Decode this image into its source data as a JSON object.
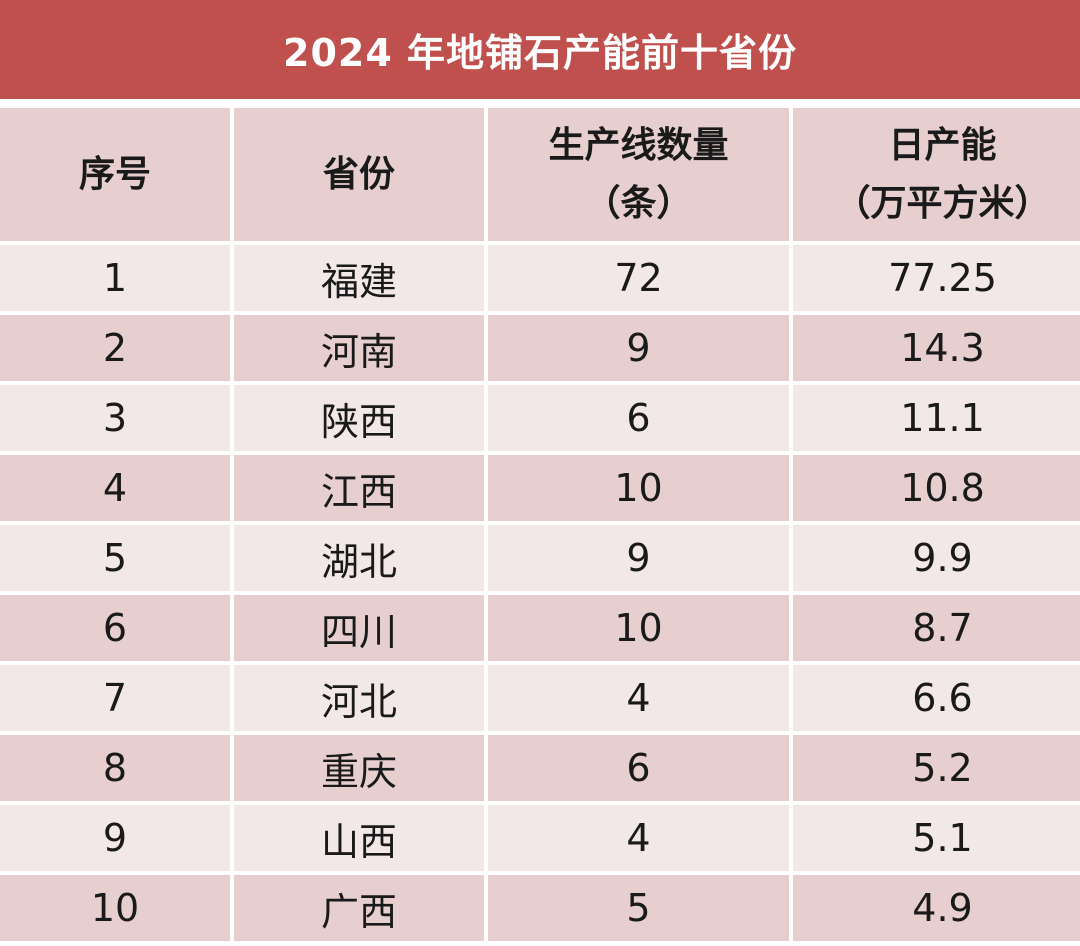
{
  "title": "2024 年地铺石产能前十省份",
  "headers": {
    "rank": "序号",
    "province": "省份",
    "lines_line1": "生产线数量",
    "lines_line2": "（条）",
    "capacity_line1": "日产能",
    "capacity_line2": "（万平方米）"
  },
  "rows": [
    {
      "rank": "1",
      "province": "福建",
      "lines": "72",
      "capacity": "77.25"
    },
    {
      "rank": "2",
      "province": "河南",
      "lines": "9",
      "capacity": "14.3"
    },
    {
      "rank": "3",
      "province": "陕西",
      "lines": "6",
      "capacity": "11.1"
    },
    {
      "rank": "4",
      "province": "江西",
      "lines": "10",
      "capacity": "10.8"
    },
    {
      "rank": "5",
      "province": "湖北",
      "lines": "9",
      "capacity": "9.9"
    },
    {
      "rank": "6",
      "province": "四川",
      "lines": "10",
      "capacity": "8.7"
    },
    {
      "rank": "7",
      "province": "河北",
      "lines": "4",
      "capacity": "6.6"
    },
    {
      "rank": "8",
      "province": "重庆",
      "lines": "6",
      "capacity": "5.2"
    },
    {
      "rank": "9",
      "province": "山西",
      "lines": "4",
      "capacity": "5.1"
    },
    {
      "rank": "10",
      "province": "广西",
      "lines": "5",
      "capacity": "4.9"
    }
  ],
  "colors": {
    "title_bg": "#c0504d",
    "header_bg": "#e8cfcf",
    "row_light": "#f2e8e8",
    "row_dark": "#e8cfcf"
  }
}
